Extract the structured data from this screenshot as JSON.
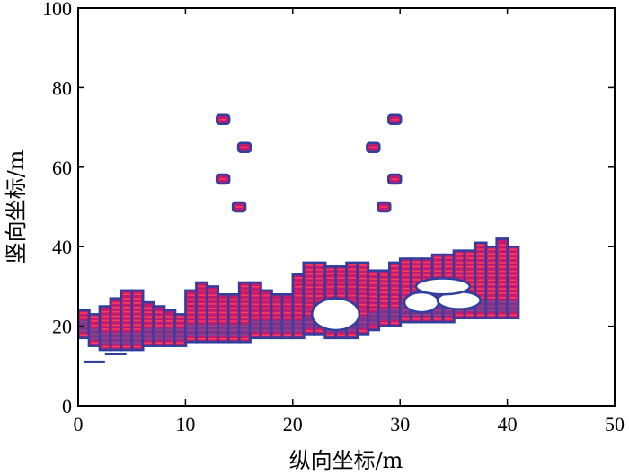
{
  "chart_data": {
    "type": "scatter",
    "xlabel": "纵向坐标/m",
    "ylabel": "竖向坐标/m",
    "xlim": [
      0,
      50
    ],
    "ylim": [
      0,
      100
    ],
    "x_ticks": [
      "0",
      "10",
      "20",
      "30",
      "40",
      "50"
    ],
    "y_ticks": [
      "0",
      "20",
      "40",
      "60",
      "80",
      "100"
    ],
    "grid": false,
    "colors": {
      "fill": "#c21a6e",
      "edge": "#2f3f9f",
      "core": "#ff3b5c"
    },
    "series": [
      {
        "name": "",
        "columns": [
          {
            "x": 0.5,
            "y_low": 17,
            "y_high": 24
          },
          {
            "x": 1.5,
            "y_low": 15,
            "y_high": 23
          },
          {
            "x": 2.5,
            "y_low": 14,
            "y_high": 25
          },
          {
            "x": 3.5,
            "y_low": 14,
            "y_high": 27
          },
          {
            "x": 4.5,
            "y_low": 14,
            "y_high": 29
          },
          {
            "x": 5.5,
            "y_low": 14,
            "y_high": 29
          },
          {
            "x": 6.5,
            "y_low": 15,
            "y_high": 26
          },
          {
            "x": 7.5,
            "y_low": 15,
            "y_high": 25
          },
          {
            "x": 8.5,
            "y_low": 15,
            "y_high": 24
          },
          {
            "x": 9.5,
            "y_low": 15,
            "y_high": 23
          },
          {
            "x": 10.5,
            "y_low": 16,
            "y_high": 29
          },
          {
            "x": 11.5,
            "y_low": 16,
            "y_high": 31
          },
          {
            "x": 12.5,
            "y_low": 16,
            "y_high": 30
          },
          {
            "x": 13.5,
            "y_low": 16,
            "y_high": 28
          },
          {
            "x": 14.5,
            "y_low": 16,
            "y_high": 28
          },
          {
            "x": 15.5,
            "y_low": 16,
            "y_high": 31
          },
          {
            "x": 16.5,
            "y_low": 17,
            "y_high": 31
          },
          {
            "x": 17.5,
            "y_low": 17,
            "y_high": 29
          },
          {
            "x": 18.5,
            "y_low": 17,
            "y_high": 28
          },
          {
            "x": 19.5,
            "y_low": 17,
            "y_high": 28
          },
          {
            "x": 20.5,
            "y_low": 17,
            "y_high": 33
          },
          {
            "x": 21.5,
            "y_low": 18,
            "y_high": 36
          },
          {
            "x": 22.5,
            "y_low": 18,
            "y_high": 36
          },
          {
            "x": 23.5,
            "y_low": 17,
            "y_high": 35
          },
          {
            "x": 24.5,
            "y_low": 17,
            "y_high": 35
          },
          {
            "x": 25.5,
            "y_low": 17,
            "y_high": 36
          },
          {
            "x": 26.5,
            "y_low": 18,
            "y_high": 36
          },
          {
            "x": 27.5,
            "y_low": 19,
            "y_high": 34
          },
          {
            "x": 28.5,
            "y_low": 20,
            "y_high": 34
          },
          {
            "x": 29.5,
            "y_low": 20,
            "y_high": 36
          },
          {
            "x": 30.5,
            "y_low": 21,
            "y_high": 37
          },
          {
            "x": 31.5,
            "y_low": 21,
            "y_high": 37
          },
          {
            "x": 32.5,
            "y_low": 21,
            "y_high": 37
          },
          {
            "x": 33.5,
            "y_low": 21,
            "y_high": 38
          },
          {
            "x": 34.5,
            "y_low": 21,
            "y_high": 38
          },
          {
            "x": 35.5,
            "y_low": 22,
            "y_high": 39
          },
          {
            "x": 36.5,
            "y_low": 22,
            "y_high": 39
          },
          {
            "x": 37.5,
            "y_low": 22,
            "y_high": 41
          },
          {
            "x": 38.5,
            "y_low": 22,
            "y_high": 40
          },
          {
            "x": 39.5,
            "y_low": 22,
            "y_high": 42
          },
          {
            "x": 40.5,
            "y_low": 22,
            "y_high": 40
          }
        ],
        "voids": [
          {
            "x": 24.0,
            "y": 23.0,
            "rx": 2.2,
            "ry": 4.0
          },
          {
            "x": 32.0,
            "y": 26.0,
            "rx": 1.6,
            "ry": 2.5
          },
          {
            "x": 35.5,
            "y": 26.5,
            "rx": 2.0,
            "ry": 2.2
          },
          {
            "x": 34.0,
            "y": 30.0,
            "rx": 2.5,
            "ry": 2.0
          }
        ],
        "tail_segments": [
          {
            "x1": 0.5,
            "x2": 2.5,
            "y": 11
          },
          {
            "x1": 2.5,
            "x2": 4.5,
            "y": 13
          }
        ],
        "isolated_points": [
          {
            "x": 13.5,
            "y": 72
          },
          {
            "x": 15.5,
            "y": 65
          },
          {
            "x": 13.5,
            "y": 57
          },
          {
            "x": 15.0,
            "y": 50
          },
          {
            "x": 29.5,
            "y": 72
          },
          {
            "x": 27.5,
            "y": 65
          },
          {
            "x": 29.5,
            "y": 57
          },
          {
            "x": 28.5,
            "y": 50
          }
        ]
      }
    ]
  }
}
